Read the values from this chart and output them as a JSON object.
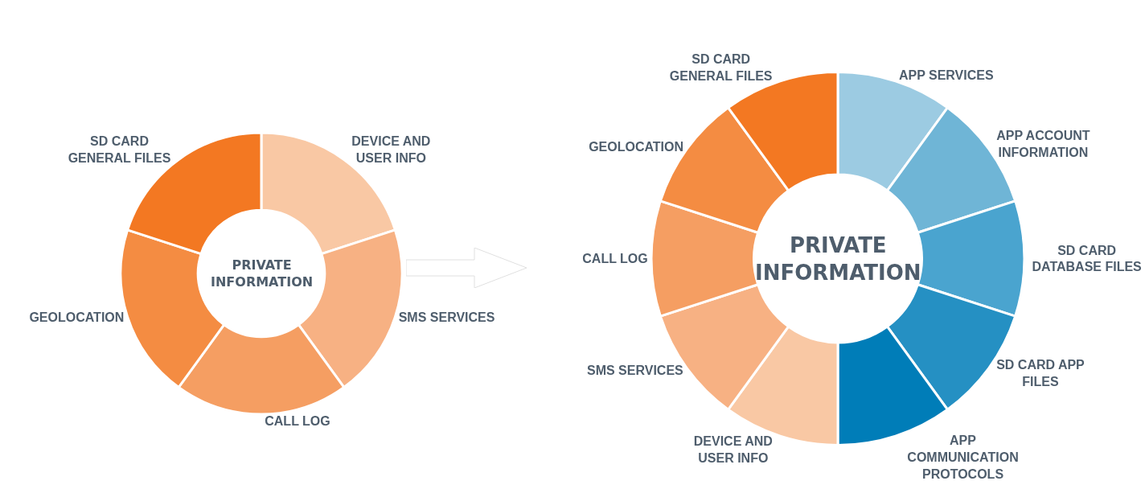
{
  "chart_data": [
    {
      "type": "donut",
      "categories": [
        "DEVICE AND USER INFO",
        "SMS SERVICES",
        "CALL LOG",
        "GEOLOCATION",
        "SD CARD GENERAL FILES"
      ],
      "values": [
        20,
        20,
        20,
        20,
        20
      ],
      "colors": [
        "#f9c8a4",
        "#f7b183",
        "#f59e62",
        "#f48c42",
        "#f37822"
      ],
      "annotations": [
        "PRIVATE INFORMATION"
      ]
    },
    {
      "type": "donut",
      "categories": [
        "APP SERVICES",
        "APP ACCOUNT INFORMATION",
        "SD CARD DATABASE FILES",
        "SD CARD APP FILES",
        "APP COMMUNICATION PROTOCOLS",
        "DEVICE AND USER INFO",
        "SMS SERVICES",
        "CALL LOG",
        "GEOLOCATION",
        "SD CARD GENERAL FILES"
      ],
      "values": [
        10,
        10,
        10,
        10,
        10,
        10,
        10,
        10,
        10,
        10
      ],
      "colors": [
        "#9ccbe2",
        "#6fb5d6",
        "#4aa4cf",
        "#2590c3",
        "#007db8",
        "#f9c8a4",
        "#f7b183",
        "#f59e62",
        "#f48c42",
        "#f37822"
      ],
      "annotations": [
        "PRIVATE INFORMATION"
      ]
    }
  ]
}
